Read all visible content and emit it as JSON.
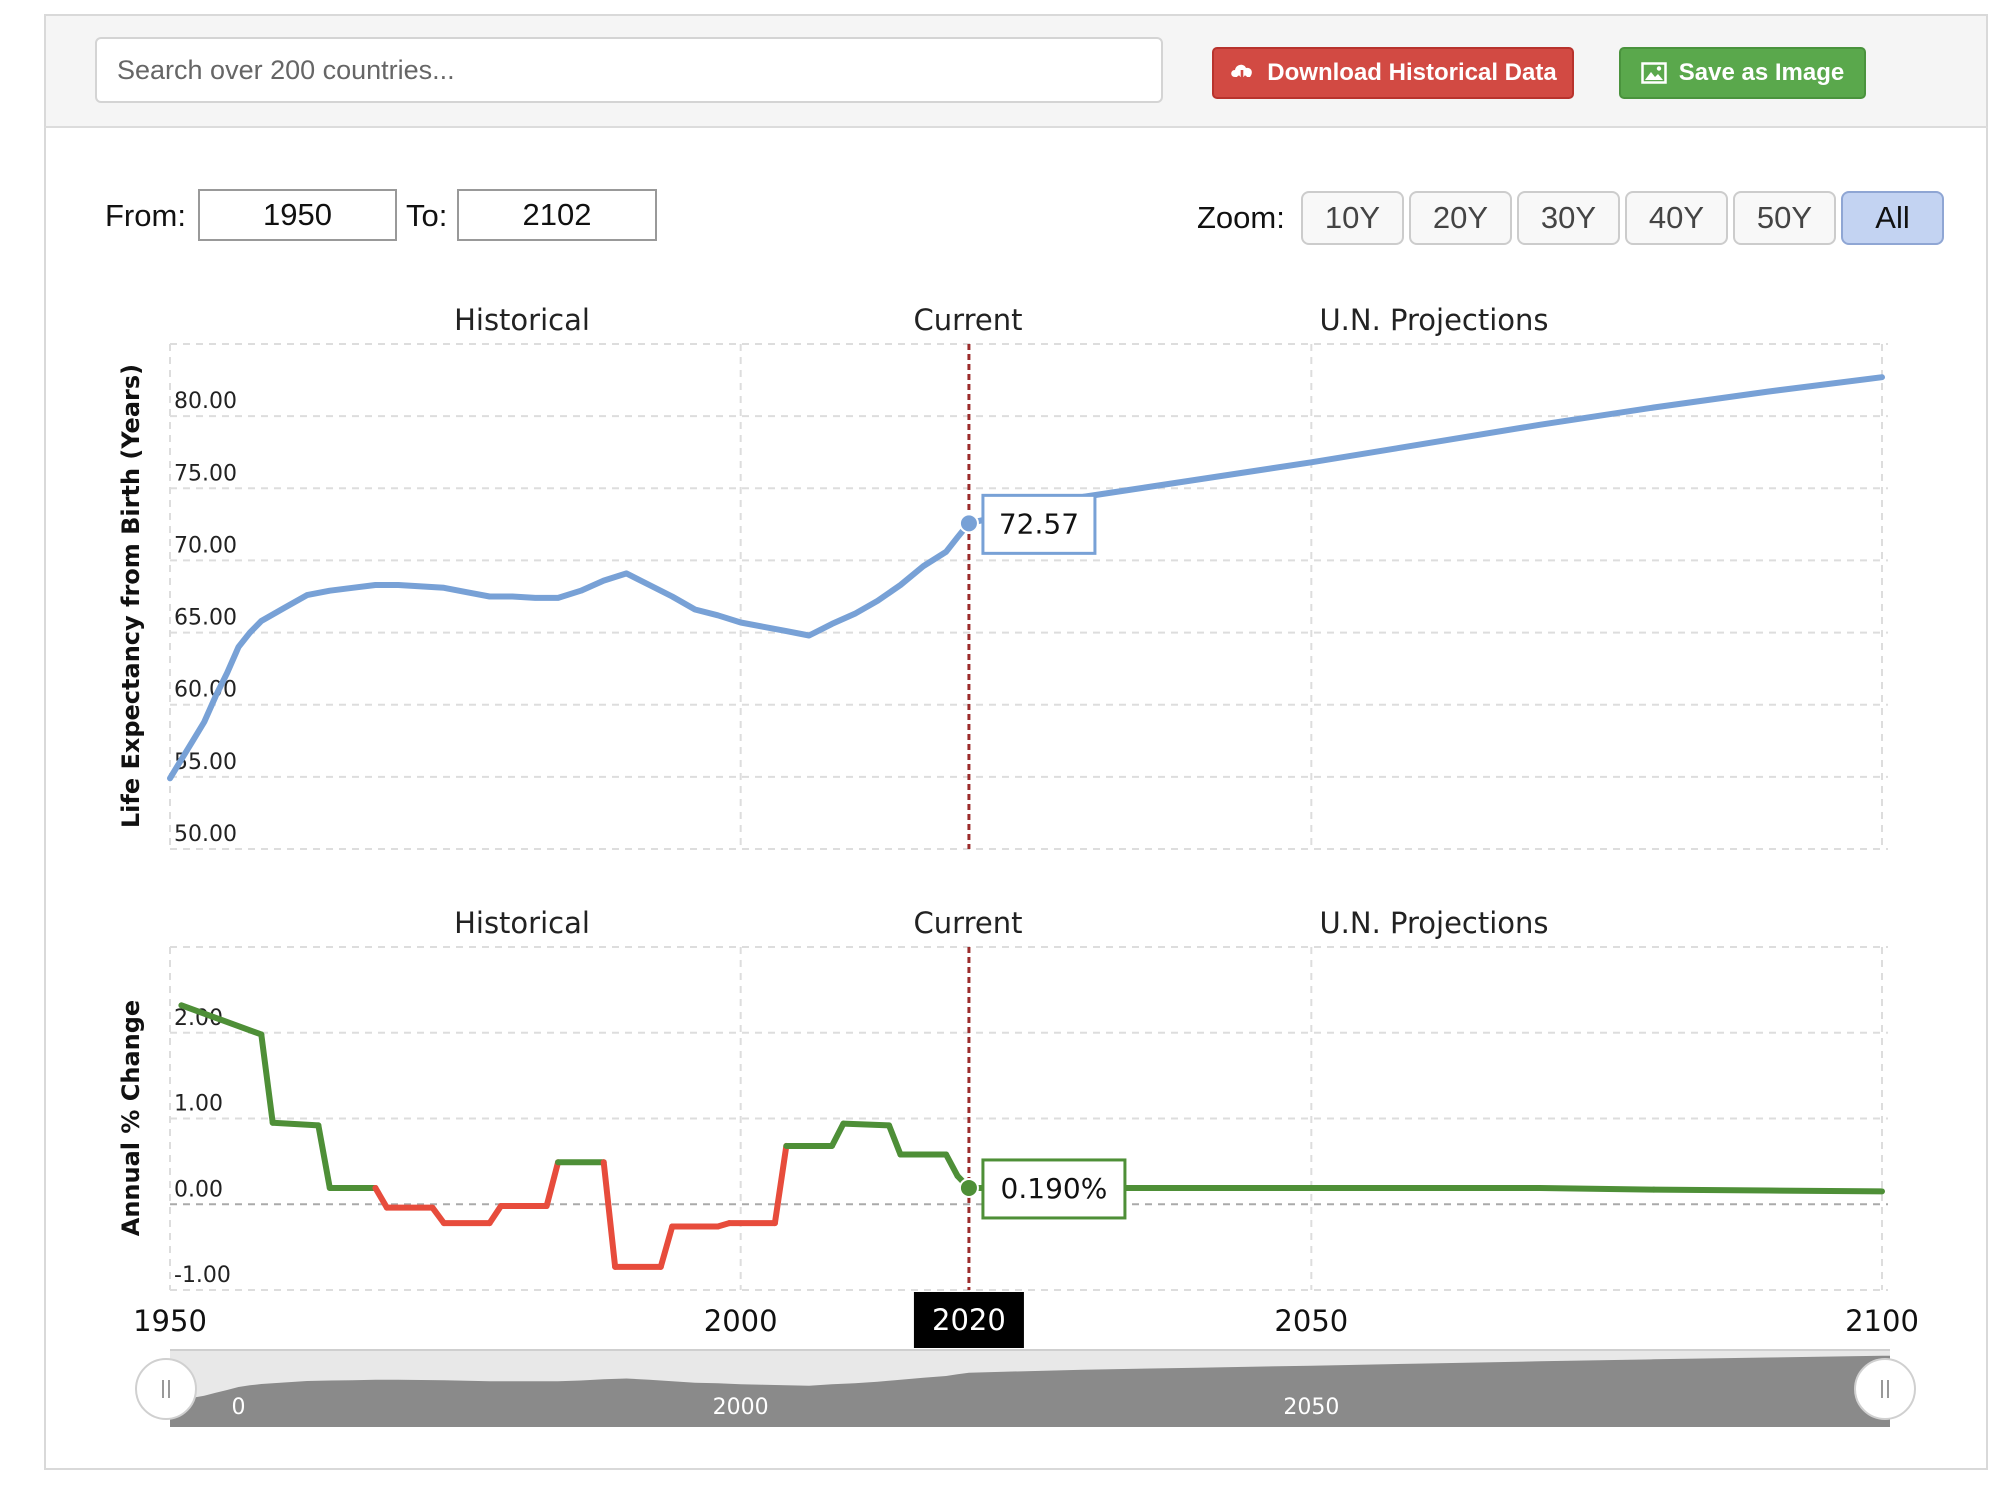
{
  "toolbar": {
    "search_placeholder": "Search over 200 countries...",
    "download_label": "Download Historical Data",
    "save_label": "Save as Image",
    "accent_red": "#d24a43",
    "accent_green": "#5aa84c"
  },
  "range": {
    "from_label": "From:",
    "from_value": "1950",
    "to_label": "To:",
    "to_value": "2102"
  },
  "zoom": {
    "label": "Zoom:",
    "options": [
      "10Y",
      "20Y",
      "30Y",
      "40Y",
      "50Y",
      "All"
    ],
    "selected": "All"
  },
  "chart_data": [
    {
      "type": "line",
      "section_labels": [
        "Historical",
        "Current",
        "U.N. Projections"
      ],
      "ylabel": "Life Expectancy from Birth (Years)",
      "xlim": [
        1950,
        2100
      ],
      "ylim": [
        50,
        85
      ],
      "yticks": [
        "50.00",
        "55.00",
        "60.00",
        "65.00",
        "70.00",
        "75.00",
        "80.00"
      ],
      "grid": true,
      "current_year": 2020,
      "tooltip": "72.57",
      "color": "#78a1d6",
      "x": [
        1950,
        1951,
        1952,
        1953,
        1954,
        1955,
        1956,
        1957,
        1958,
        1960,
        1962,
        1964,
        1966,
        1968,
        1970,
        1972,
        1974,
        1976,
        1978,
        1980,
        1982,
        1984,
        1986,
        1988,
        1990,
        1992,
        1994,
        1996,
        1998,
        2000,
        2002,
        2004,
        2006,
        2008,
        2010,
        2012,
        2014,
        2016,
        2018,
        2019,
        2020,
        2030,
        2040,
        2050,
        2060,
        2070,
        2080,
        2090,
        2100
      ],
      "y": [
        54.9,
        56.2,
        57.5,
        58.8,
        60.6,
        62.2,
        64.0,
        65.0,
        65.8,
        66.7,
        67.6,
        67.9,
        68.1,
        68.3,
        68.3,
        68.2,
        68.1,
        67.8,
        67.5,
        67.5,
        67.4,
        67.4,
        67.9,
        68.6,
        69.1,
        68.3,
        67.5,
        66.6,
        66.2,
        65.7,
        65.4,
        65.1,
        64.8,
        65.6,
        66.3,
        67.2,
        68.3,
        69.6,
        70.6,
        71.6,
        72.57,
        74.4,
        75.6,
        76.8,
        78.1,
        79.4,
        80.6,
        81.7,
        82.7
      ]
    },
    {
      "type": "line",
      "section_labels": [
        "Historical",
        "Current",
        "U.N. Projections"
      ],
      "ylabel": "Annual % Change",
      "xlim": [
        1950,
        2100
      ],
      "ylim": [
        -1,
        3
      ],
      "yticks": [
        "-1.00",
        "0.00",
        "1.00",
        "2.00"
      ],
      "xticks": [
        "1950",
        "2000",
        "2050",
        "2100"
      ],
      "grid": true,
      "current_year": 2020,
      "current_label": "2020",
      "tooltip": "0.190%",
      "positive_color": "#4e8f37",
      "negative_color": "#e74c3c",
      "x": [
        1951,
        1958,
        1959,
        1963,
        1964,
        1968,
        1969,
        1973,
        1974,
        1978,
        1979,
        1983,
        1984,
        1988,
        1989,
        1993,
        1994,
        1998,
        1999,
        2003,
        2004,
        2008,
        2009,
        2013,
        2014,
        2018,
        2019,
        2020,
        2030,
        2070,
        2080,
        2090,
        2100
      ],
      "y": [
        2.32,
        1.98,
        0.95,
        0.92,
        0.19,
        0.19,
        -0.04,
        -0.04,
        -0.22,
        -0.22,
        -0.02,
        -0.02,
        0.49,
        0.49,
        -0.73,
        -0.73,
        -0.26,
        -0.26,
        -0.22,
        -0.22,
        0.68,
        0.68,
        0.94,
        0.92,
        0.58,
        0.58,
        0.33,
        0.19,
        0.19,
        0.19,
        0.17,
        0.16,
        0.15
      ]
    }
  ],
  "navigator": {
    "labels": [
      "0",
      "2000",
      "2050"
    ]
  }
}
